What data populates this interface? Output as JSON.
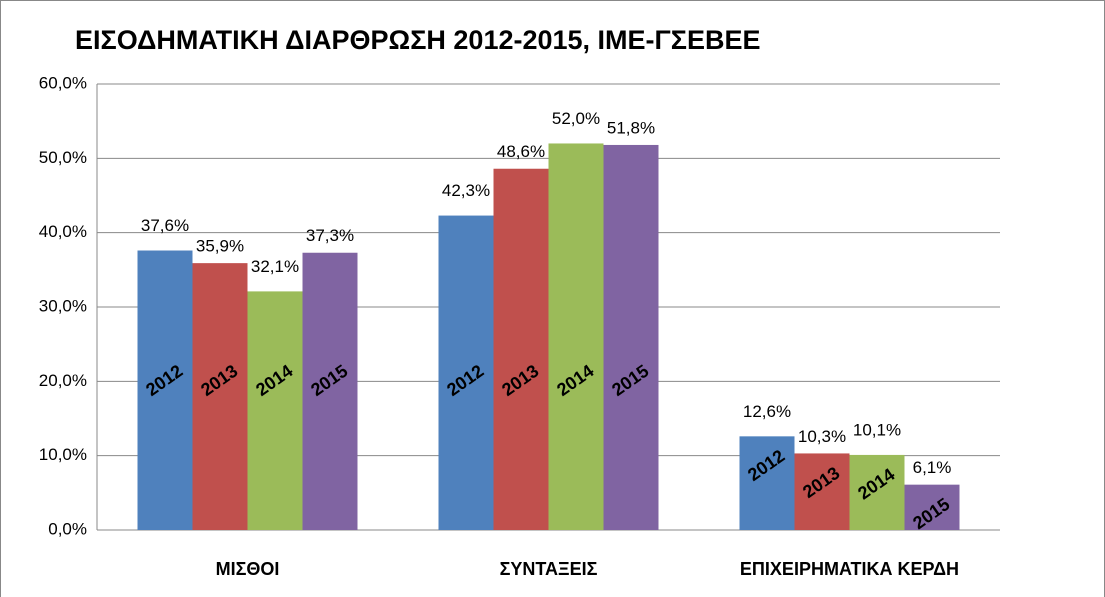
{
  "chart_data": {
    "type": "bar",
    "title": "ΕΙΣΟΔΗΜΑΤΙΚΗ ΔΙΑΡΘΡΩΣΗ 2012-2015, ΙΜΕ-ΓΣΕΒΕΕ",
    "categories": [
      "ΜΙΣΘΟΙ",
      "ΣΥΝΤΑΞΕΙΣ",
      "ΕΠΙΧΕΙΡΗΜΑΤΙΚΑ ΚΕΡΔΗ"
    ],
    "series": [
      {
        "name": "2012",
        "color": "#4f81bd",
        "values": [
          37.6,
          42.3,
          12.6
        ],
        "value_labels": [
          "37,6%",
          "42,3%",
          "12,6%"
        ]
      },
      {
        "name": "2013",
        "color": "#c0504d",
        "values": [
          35.9,
          48.6,
          10.3
        ],
        "value_labels": [
          "35,9%",
          "48,6%",
          "10,3%"
        ]
      },
      {
        "name": "2014",
        "color": "#9bbb59",
        "values": [
          32.1,
          52.0,
          10.1
        ],
        "value_labels": [
          "32,1%",
          "52,0%",
          "10,1%"
        ]
      },
      {
        "name": "2015",
        "color": "#8064a2",
        "values": [
          37.3,
          51.8,
          6.1
        ],
        "value_labels": [
          "37,3%",
          "51,8%",
          "6,1%"
        ]
      }
    ],
    "ylim": [
      0,
      60
    ],
    "yticks": [
      {
        "value": 0,
        "label": "0,0%"
      },
      {
        "value": 10,
        "label": "10,0%"
      },
      {
        "value": 20,
        "label": "20,0%"
      },
      {
        "value": 30,
        "label": "30,0%"
      },
      {
        "value": 40,
        "label": "40,0%"
      },
      {
        "value": 50,
        "label": "50,0%"
      },
      {
        "value": 60,
        "label": "60,0%"
      }
    ],
    "grid": true
  }
}
